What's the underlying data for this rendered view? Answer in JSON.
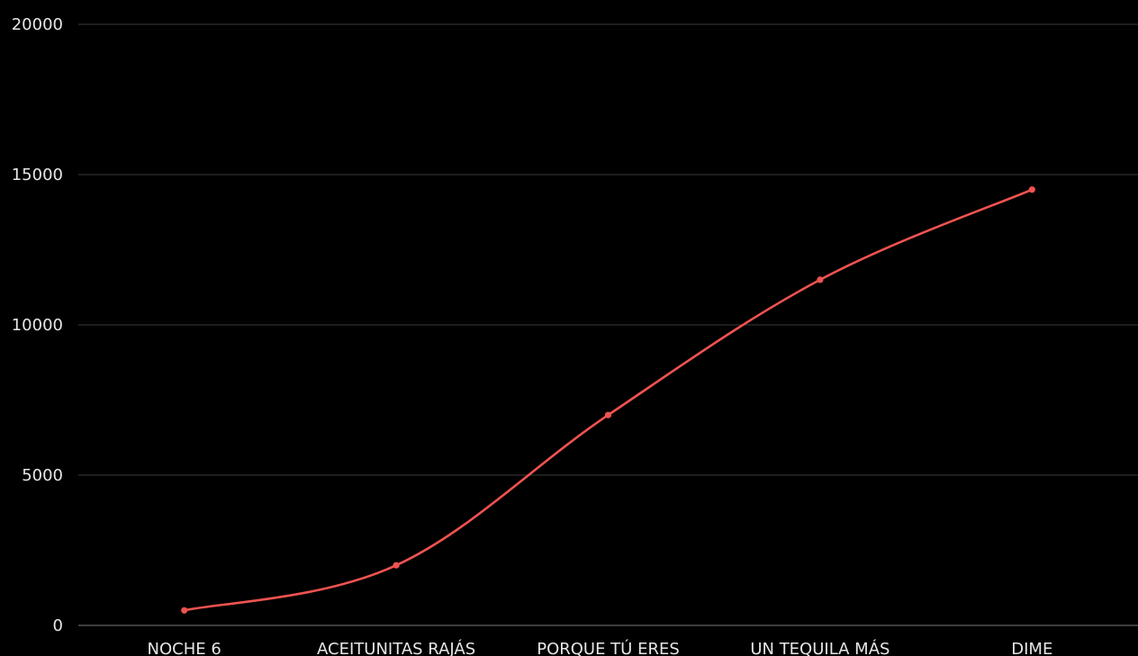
{
  "chart_data": {
    "type": "line",
    "title": "",
    "xlabel": "",
    "ylabel": "",
    "categories": [
      "NOCHE 6",
      "ACEITUNITAS RAJÁS",
      "PORQUE TÚ ERES",
      "UN TEQUILA MÁS",
      "DIME"
    ],
    "series": [
      {
        "values": [
          500,
          2000,
          7000,
          11500,
          14500
        ],
        "color": "#ef5350"
      }
    ],
    "ylim": [
      0,
      20000
    ],
    "yticks": [
      0,
      5000,
      10000,
      15000,
      20000
    ],
    "smooth": true,
    "grid": true,
    "legend": "none",
    "background": "#000000"
  }
}
